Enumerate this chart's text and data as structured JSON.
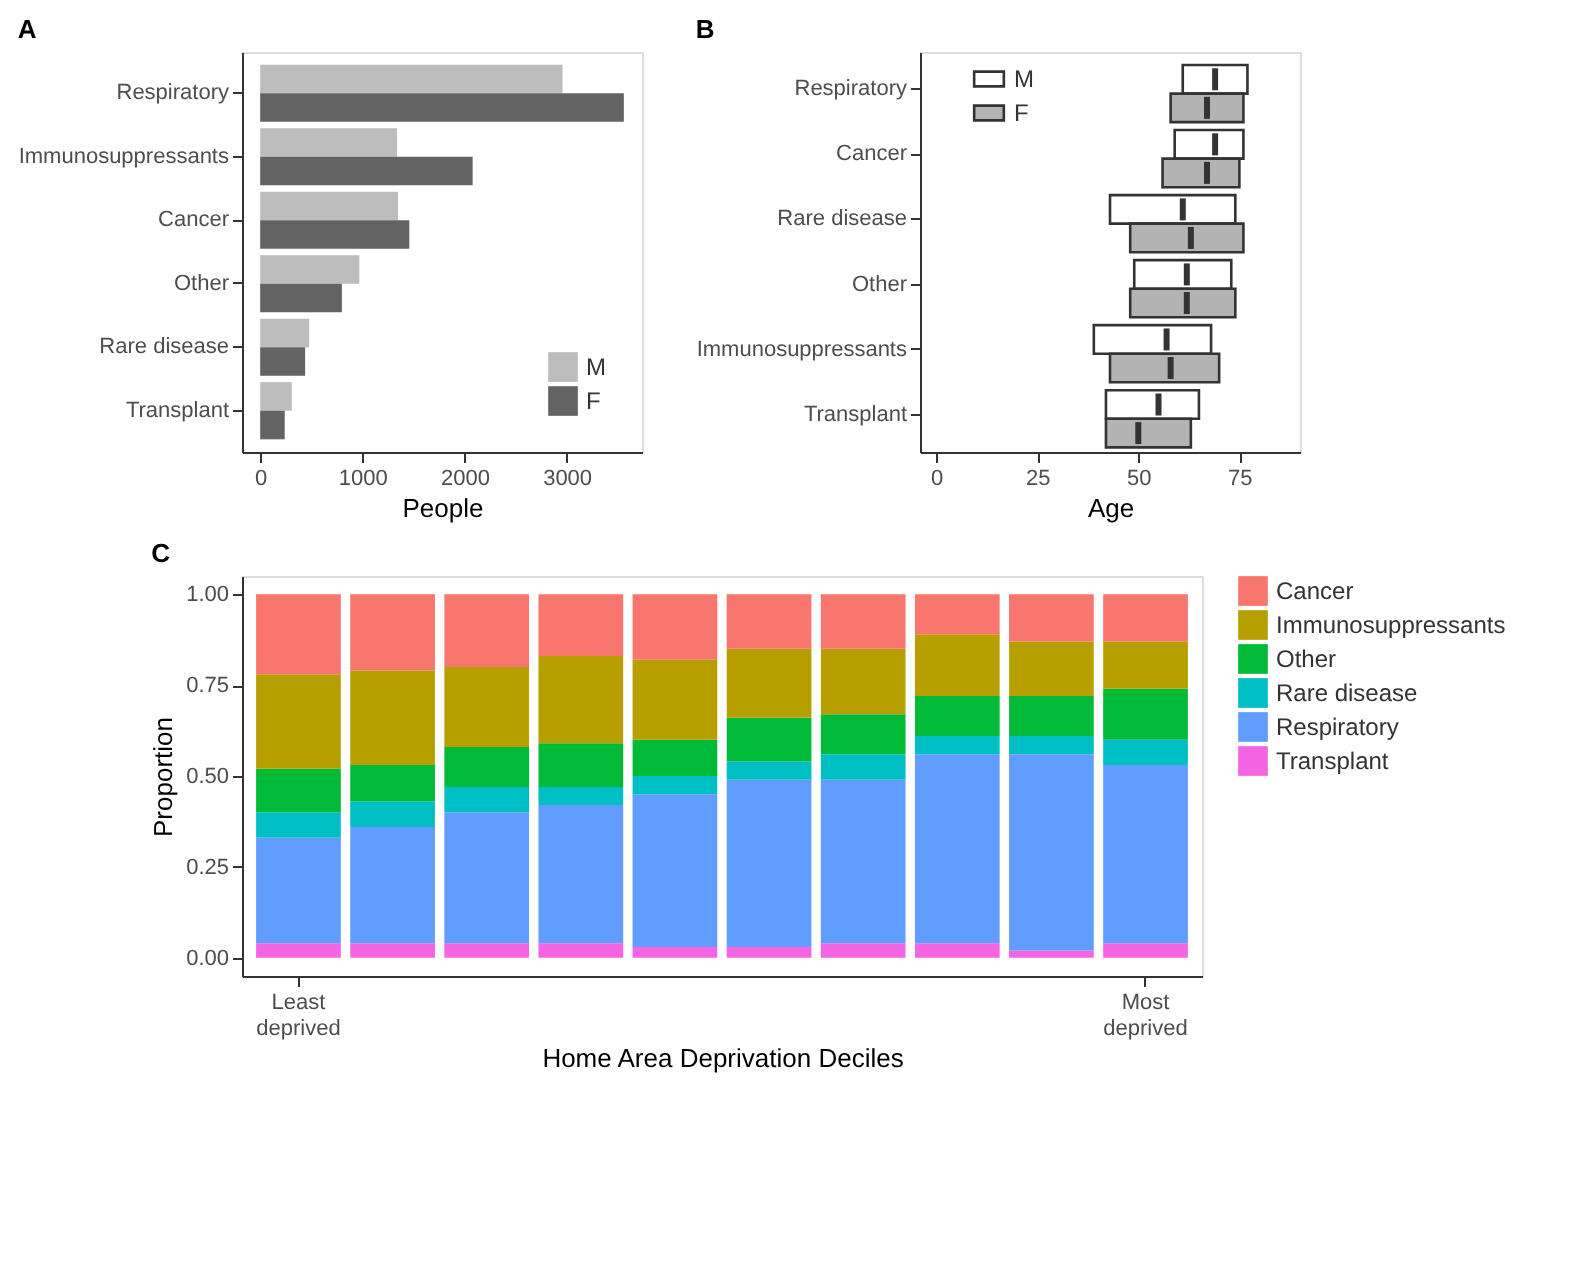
{
  "chart_data": [
    {
      "type": "bar",
      "orientation": "horizontal",
      "title": "A",
      "xlabel": "People",
      "categories": [
        "Respiratory",
        "Immunosuppressants",
        "Cancer",
        "Other",
        "Rare disease",
        "Transplant"
      ],
      "series": [
        {
          "name": "M",
          "color": "#bdbdbd",
          "values": [
            2960,
            1340,
            1350,
            970,
            480,
            310
          ]
        },
        {
          "name": "F",
          "color": "#636363",
          "values": [
            3560,
            2080,
            1460,
            800,
            440,
            240
          ]
        }
      ],
      "xlim": [
        -178,
        3738
      ],
      "xticks": [
        0,
        1000,
        2000,
        3000
      ],
      "legend": "bottom right",
      "grid": false
    },
    {
      "type": "box",
      "orientation": "horizontal",
      "title": "B",
      "xlabel": "Age",
      "categories": [
        "Respiratory",
        "Cancer",
        "Rare disease",
        "Other",
        "Immunosuppressants",
        "Transplant"
      ],
      "series": [
        {
          "name": "M",
          "color": "#ffffff",
          "boxes": [
            {
              "low": 61,
              "q1": 61,
              "median": 69,
              "q3": 77,
              "high": 77
            },
            {
              "low": 59,
              "q1": 59,
              "median": 69,
              "q3": 76,
              "high": 76
            },
            {
              "low": 43,
              "q1": 43,
              "median": 61,
              "q3": 74,
              "high": 74
            },
            {
              "low": 49,
              "q1": 49,
              "median": 62,
              "q3": 73,
              "high": 73
            },
            {
              "low": 39,
              "q1": 39,
              "median": 57,
              "q3": 68,
              "high": 68
            },
            {
              "low": 42,
              "q1": 42,
              "median": 55,
              "q3": 65,
              "high": 65
            }
          ]
        },
        {
          "name": "F",
          "color": "#b3b3b3",
          "boxes": [
            {
              "low": 58,
              "q1": 58,
              "median": 67,
              "q3": 76,
              "high": 76
            },
            {
              "low": 56,
              "q1": 56,
              "median": 67,
              "q3": 75,
              "high": 75
            },
            {
              "low": 48,
              "q1": 48,
              "median": 63,
              "q3": 76,
              "high": 76
            },
            {
              "low": 48,
              "q1": 48,
              "median": 62,
              "q3": 74,
              "high": 74
            },
            {
              "low": 43,
              "q1": 43,
              "median": 58,
              "q3": 70,
              "high": 70
            },
            {
              "low": 42,
              "q1": 42,
              "median": 50,
              "q3": 63,
              "high": 63
            }
          ]
        }
      ],
      "xlim": [
        -4,
        90
      ],
      "xticks": [
        0,
        25,
        50,
        75
      ],
      "legend": "top left",
      "grid": false
    },
    {
      "type": "bar",
      "stacked": true,
      "title": "C",
      "xlabel": "Home Area Deprivation Deciles",
      "ylabel": "Proportion",
      "categories": [
        "Least deprived",
        null,
        null,
        null,
        null,
        null,
        null,
        null,
        null,
        "Most deprived"
      ],
      "series": [
        {
          "name": "Transplant",
          "color": "#f564e3",
          "values": [
            0.04,
            0.04,
            0.04,
            0.04,
            0.03,
            0.03,
            0.04,
            0.04,
            0.02,
            0.04
          ]
        },
        {
          "name": "Respiratory",
          "color": "#619cff",
          "values": [
            0.29,
            0.32,
            0.36,
            0.38,
            0.42,
            0.46,
            0.45,
            0.52,
            0.54,
            0.49
          ]
        },
        {
          "name": "Rare disease",
          "color": "#00bfc4",
          "values": [
            0.07,
            0.07,
            0.07,
            0.05,
            0.05,
            0.05,
            0.07,
            0.05,
            0.05,
            0.07
          ]
        },
        {
          "name": "Other",
          "color": "#00ba38",
          "values": [
            0.12,
            0.1,
            0.11,
            0.12,
            0.1,
            0.12,
            0.11,
            0.11,
            0.11,
            0.14
          ]
        },
        {
          "name": "Immunosuppressants",
          "color": "#b79f00",
          "values": [
            0.26,
            0.26,
            0.22,
            0.24,
            0.22,
            0.19,
            0.18,
            0.17,
            0.15,
            0.13
          ]
        },
        {
          "name": "Cancer",
          "color": "#f8766d",
          "values": [
            0.22,
            0.21,
            0.2,
            0.17,
            0.18,
            0.15,
            0.15,
            0.11,
            0.13,
            0.13
          ]
        }
      ],
      "ylim": [
        -0.05,
        1.05
      ],
      "yticks": [
        {
          "value": 0,
          "label": "0.00"
        },
        {
          "value": 0.25,
          "label": "0.25"
        },
        {
          "value": 0.5,
          "label": "0.50"
        },
        {
          "value": 0.75,
          "label": "0.75"
        },
        {
          "value": 1,
          "label": "1.00"
        }
      ],
      "legend": "right",
      "grid": false
    }
  ]
}
